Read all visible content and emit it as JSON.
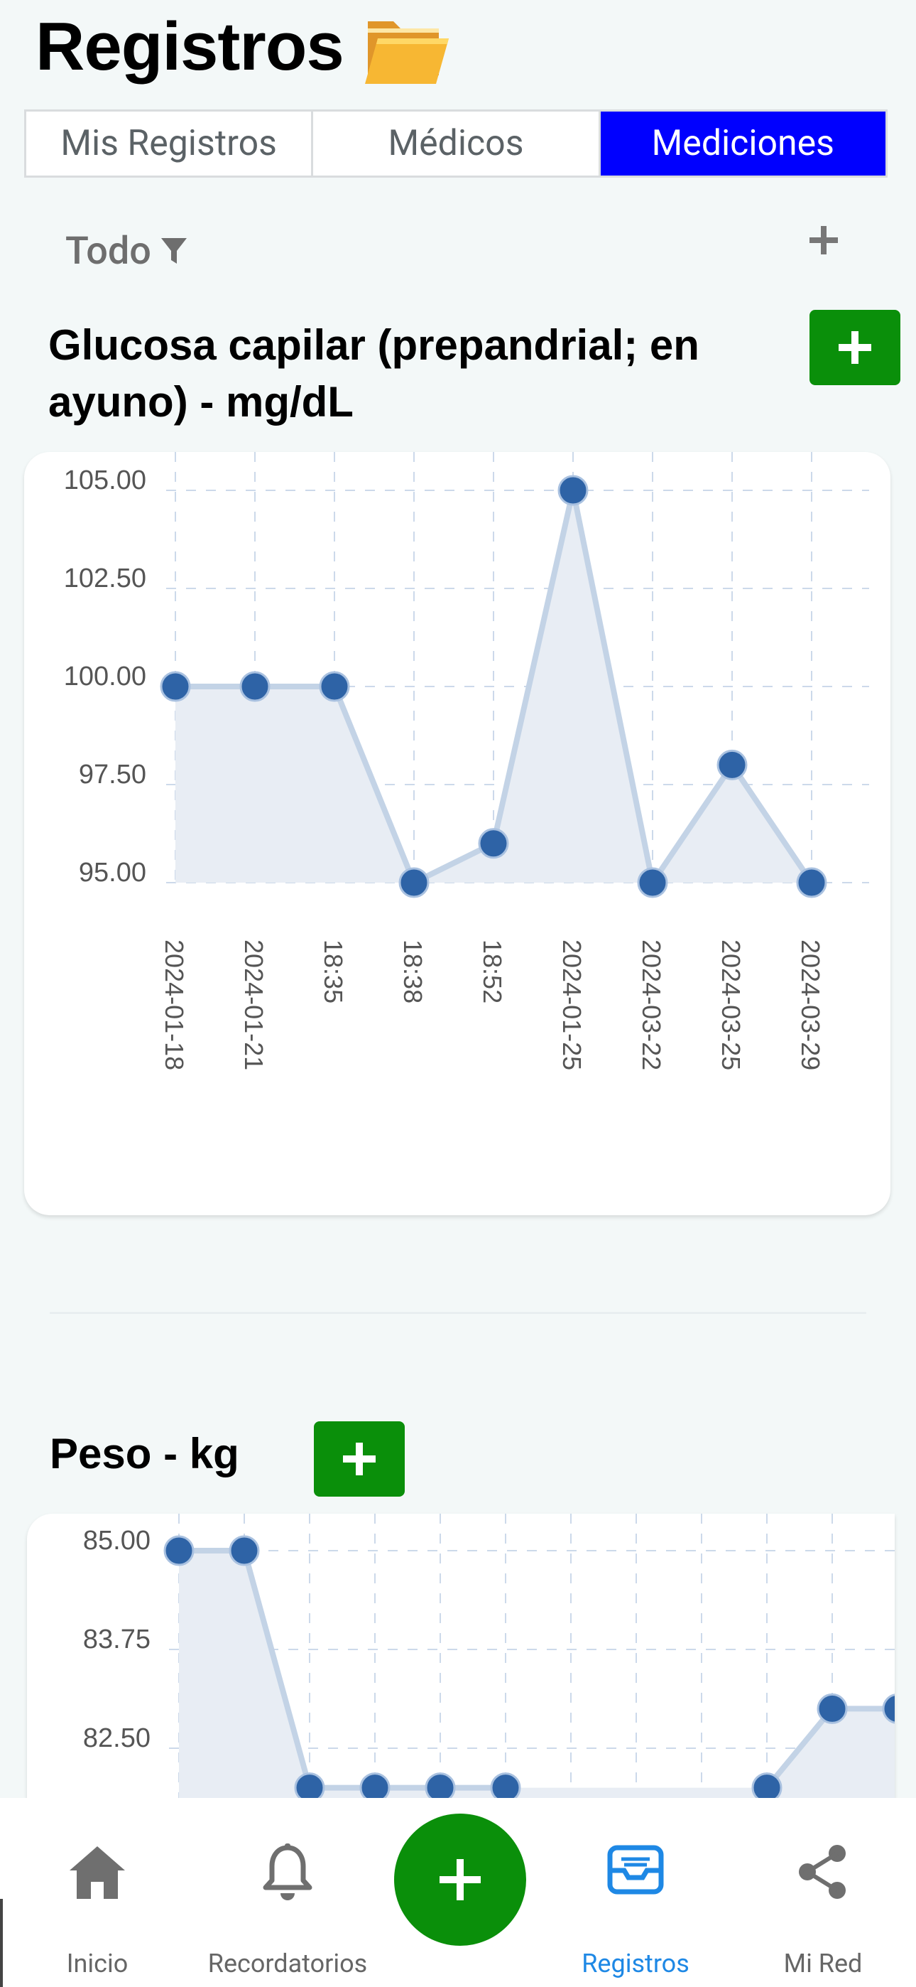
{
  "header": {
    "title": "Registros",
    "folder_icon": "open-folder-icon"
  },
  "tabs": [
    {
      "label": "Mis Registros",
      "active": false
    },
    {
      "label": "Médicos",
      "active": false
    },
    {
      "label": "Mediciones",
      "active": true
    }
  ],
  "filter": {
    "label": "Todo",
    "icon": "filter-icon",
    "add_icon": "plus-icon"
  },
  "sections": [
    {
      "title_line1": "Glucosa capilar (prepandrial; en",
      "title_line2": "ayuno) - mg/dL",
      "add_icon": "plus-icon"
    },
    {
      "title": "Peso - kg",
      "add_icon": "plus-icon"
    }
  ],
  "colors": {
    "accent_blue": "#0000ff",
    "green": "#0a8f0a",
    "point": "#2e63a6",
    "line": "#c3d3e6",
    "fill": "#e8edf4",
    "active_nav": "#1e88e5"
  },
  "chart_data": [
    {
      "type": "area",
      "title": "Glucosa capilar (prepandrial; en ayuno) - mg/dL",
      "categories": [
        "2024-01-18",
        "2024-01-21",
        "18:35",
        "18:38",
        "18:52",
        "2024-01-25",
        "2024-03-22",
        "2024-03-25",
        "2024-03-29"
      ],
      "values": [
        100,
        100,
        100,
        95,
        96,
        105,
        95,
        98,
        95
      ],
      "ylim": [
        95,
        105
      ],
      "yticks": [
        "105.00",
        "102.50",
        "100.00",
        "97.50",
        "95.00"
      ],
      "grid": true
    },
    {
      "type": "area",
      "title": "Peso - kg",
      "values": [
        85,
        85,
        82,
        82,
        82,
        82,
        null,
        null,
        null,
        82,
        83,
        83
      ],
      "yticks": [
        "85.00",
        "83.75",
        "82.50"
      ],
      "grid": true
    }
  ],
  "nav": [
    {
      "label": "Inicio",
      "icon": "home-icon",
      "active": false
    },
    {
      "label": "Recordatorios",
      "icon": "bell-icon",
      "active": false
    },
    {
      "label": "",
      "icon": "plus-icon",
      "active": false
    },
    {
      "label": "Registros",
      "icon": "inbox-icon",
      "active": true
    },
    {
      "label": "Mi Red",
      "icon": "share-icon",
      "active": false
    }
  ]
}
